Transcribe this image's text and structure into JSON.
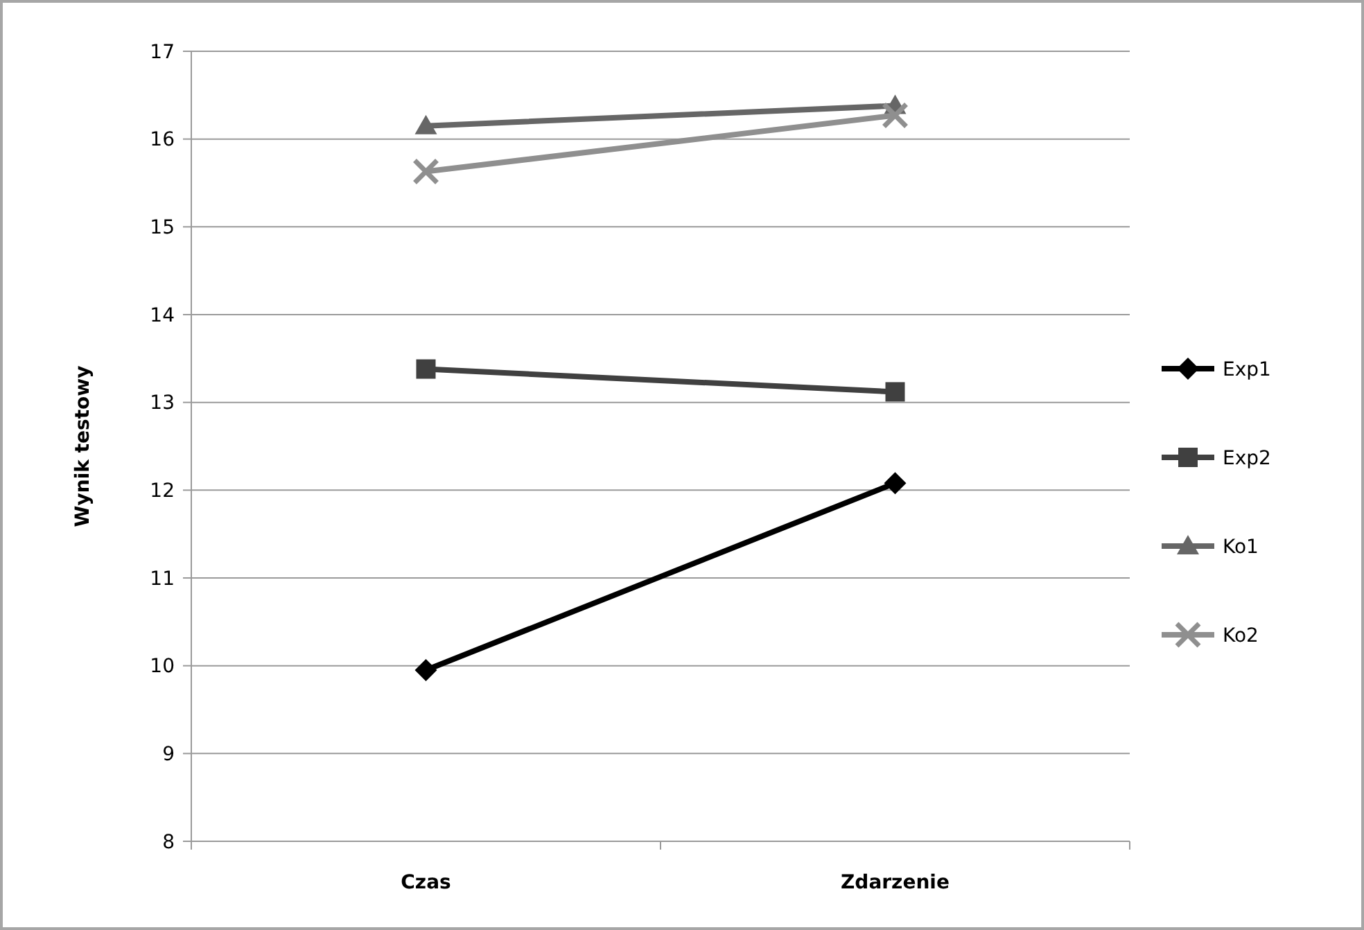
{
  "chart_data": {
    "type": "line",
    "ylabel": "Wynik testowy",
    "categories": [
      "Czas",
      "Zdarzenie"
    ],
    "series": [
      {
        "name": "Exp1",
        "color": "#000000",
        "marker": "diamond",
        "values": [
          9.95,
          12.08
        ]
      },
      {
        "name": "Exp2",
        "color": "#404040",
        "marker": "square",
        "values": [
          13.38,
          13.12
        ]
      },
      {
        "name": "Ko1",
        "color": "#666666",
        "marker": "triangle",
        "values": [
          16.15,
          16.38
        ]
      },
      {
        "name": "Ko2",
        "color": "#8f8f8f",
        "marker": "cross",
        "values": [
          15.63,
          16.27
        ]
      }
    ],
    "ylim": [
      8,
      17
    ],
    "yticks": [
      8,
      9,
      10,
      11,
      12,
      13,
      14,
      15,
      16,
      17
    ],
    "grid": "y",
    "legend": "right"
  }
}
